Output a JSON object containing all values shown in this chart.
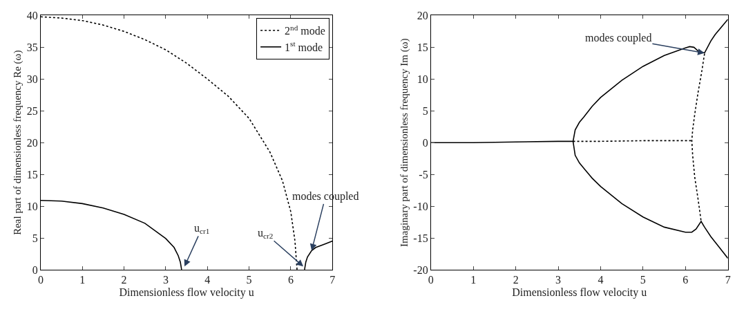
{
  "chart_data": [
    {
      "type": "line",
      "xlabel": "Dimensionless flow velocity u",
      "ylabel": "Real part of dimensionless frequency Re (ω)",
      "xlim": [
        0,
        7
      ],
      "ylim": [
        0,
        40
      ],
      "xticks": [
        0,
        1,
        2,
        3,
        4,
        5,
        6,
        7
      ],
      "yticks": [
        0,
        5,
        10,
        15,
        20,
        25,
        30,
        35,
        40
      ],
      "legend": "top right",
      "marker": "none",
      "series": [
        {
          "name": "2$^{nd}$ mode",
          "color": "#000000",
          "line_style": "dotted",
          "x": [
            0,
            0.5,
            1,
            1.5,
            2,
            2.5,
            3,
            3.5,
            4,
            4.5,
            5,
            5.5,
            5.8,
            6,
            6.1,
            6.15
          ],
          "values": [
            39.8,
            39.6,
            39.2,
            38.5,
            37.5,
            36.2,
            34.6,
            32.5,
            30,
            27.3,
            23.8,
            18.5,
            14,
            9.1,
            4.5,
            0
          ]
        },
        {
          "name": "1$^{st}$ mode",
          "color": "#000000",
          "line_style": "solid",
          "x": [
            0,
            0.5,
            1,
            1.5,
            2,
            2.5,
            3,
            3.2,
            3.3,
            3.35,
            3.38,
            null,
            6.33,
            6.36,
            6.4,
            6.5,
            6.6,
            6.8,
            7
          ],
          "values": [
            10.9,
            10.8,
            10.4,
            9.7,
            8.7,
            7.3,
            4.9,
            3.5,
            2.2,
            1.2,
            0,
            null,
            0,
            1.2,
            2,
            3,
            3.5,
            4,
            4.5
          ]
        }
      ],
      "annotations": [
        {
          "text": "u$_{cr1}$",
          "x": 3.45,
          "y": 0.5
        },
        {
          "text": "u$_{cr2}$",
          "x": 6.3,
          "y": 0.5
        },
        {
          "text": "modes coupled",
          "x": 6.5,
          "y": 3
        }
      ]
    },
    {
      "type": "line",
      "xlabel": "Dimensionless flow velocity u",
      "ylabel": "Imaginary part of dimensionless frequency Im (ω)",
      "xlim": [
        0,
        7
      ],
      "ylim": [
        -20,
        20
      ],
      "xticks": [
        0,
        1,
        2,
        3,
        4,
        5,
        6,
        7
      ],
      "yticks": [
        -20,
        -15,
        -10,
        -5,
        0,
        5,
        10,
        15,
        20
      ],
      "legend": false,
      "marker": "none",
      "series": [
        {
          "color": "#000000",
          "line_style": "solid",
          "x": [
            0,
            1,
            2,
            3,
            3.35,
            3.4,
            3.5,
            3.6,
            3.8,
            4,
            4.5,
            5,
            5.5,
            6,
            6.1,
            6.2,
            6.3,
            6.45,
            6.6,
            6.7,
            6.85,
            7
          ],
          "values": [
            0,
            0,
            0.1,
            0.2,
            0.2,
            2,
            3.2,
            4,
            5.7,
            7.1,
            9.8,
            12,
            13.7,
            14.9,
            15.1,
            15,
            14.4,
            14.1,
            16,
            17,
            18.2,
            19.4
          ]
        },
        {
          "color": "#000000",
          "line_style": "solid",
          "x": [
            3.35,
            3.4,
            3.5,
            3.6,
            3.8,
            4,
            4.5,
            5,
            5.5,
            6,
            6.15,
            6.25,
            6.37,
            6.45,
            6.6,
            6.8,
            7
          ],
          "values": [
            0.2,
            -2,
            -3.2,
            -4,
            -5.6,
            -6.9,
            -9.6,
            -11.7,
            -13.3,
            -14.1,
            -14.1,
            -13.6,
            -12.4,
            -13.3,
            -14.8,
            -16.5,
            -18.2
          ]
        },
        {
          "color": "#000000",
          "line_style": "dotted",
          "x": [
            3.35,
            4,
            5,
            6,
            6.15
          ],
          "values": [
            0.2,
            0.2,
            0.3,
            0.3,
            0.3
          ]
        },
        {
          "color": "#000000",
          "line_style": "dotted",
          "x": [
            6.45,
            6.38,
            6.3,
            6.22,
            6.17,
            6.15,
            6.17,
            6.22,
            6.3,
            6.37
          ],
          "values": [
            14,
            11,
            8,
            4.5,
            2,
            0.3,
            -2,
            -5.5,
            -9,
            -12.4
          ]
        }
      ],
      "annotations": [
        {
          "text": "modes coupled",
          "x": 6.45,
          "y": 14.1
        }
      ]
    }
  ]
}
